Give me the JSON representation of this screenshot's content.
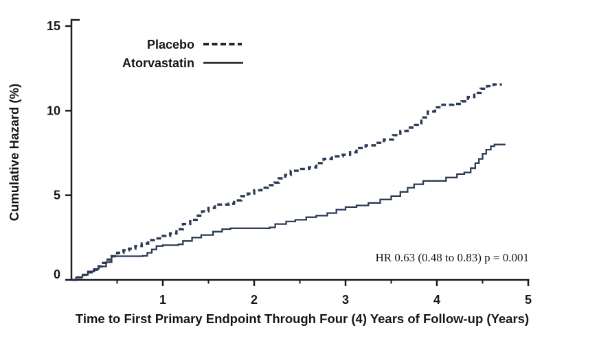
{
  "chart_data": {
    "type": "line",
    "title": "",
    "xlabel": "Time to First Primary Endpoint Through Four (4) Years of Follow-up (Years)",
    "ylabel": "Cumulative Hazard (%)",
    "xlim": [
      0,
      5
    ],
    "ylim": [
      0,
      15
    ],
    "x_major_ticks": [
      1,
      2,
      3,
      4,
      5
    ],
    "x_minor_ticks": [
      0.5,
      1.5,
      2.5,
      3.5,
      4.5
    ],
    "y_ticks": [
      0,
      5,
      10,
      15
    ],
    "grid": false,
    "legend_position": "inside-top-left",
    "annotation": {
      "text": "HR 0.63 (0.48 to 0.83) p = 0.001"
    },
    "colors": {
      "curve": "#2c3a55",
      "axis": "#1b1b1b",
      "text": "#161616",
      "legend_sample": "#1b1b1b",
      "background": "#ffffff"
    },
    "series": [
      {
        "name": "Placebo",
        "style": "dashed",
        "step": true,
        "points": [
          [
            0,
            0
          ],
          [
            0.05,
            0.15
          ],
          [
            0.1,
            0.3
          ],
          [
            0.16,
            0.45
          ],
          [
            0.22,
            0.6
          ],
          [
            0.28,
            0.8
          ],
          [
            0.33,
            1.0
          ],
          [
            0.38,
            1.2
          ],
          [
            0.44,
            1.4
          ],
          [
            0.5,
            1.6
          ],
          [
            0.57,
            1.75
          ],
          [
            0.63,
            1.85
          ],
          [
            0.7,
            2.0
          ],
          [
            0.77,
            2.15
          ],
          [
            0.84,
            2.35
          ],
          [
            0.92,
            2.45
          ],
          [
            1.0,
            2.6
          ],
          [
            1.08,
            2.75
          ],
          [
            1.15,
            3.0
          ],
          [
            1.22,
            3.3
          ],
          [
            1.3,
            3.55
          ],
          [
            1.37,
            3.8
          ],
          [
            1.43,
            4.05
          ],
          [
            1.5,
            4.25
          ],
          [
            1.57,
            4.45
          ],
          [
            1.72,
            4.5
          ],
          [
            1.78,
            4.7
          ],
          [
            1.86,
            4.95
          ],
          [
            1.93,
            5.1
          ],
          [
            2.0,
            5.3
          ],
          [
            2.08,
            5.45
          ],
          [
            2.15,
            5.6
          ],
          [
            2.22,
            5.75
          ],
          [
            2.27,
            6.0
          ],
          [
            2.34,
            6.2
          ],
          [
            2.4,
            6.45
          ],
          [
            2.5,
            6.55
          ],
          [
            2.6,
            6.65
          ],
          [
            2.68,
            6.9
          ],
          [
            2.76,
            7.15
          ],
          [
            2.85,
            7.3
          ],
          [
            2.97,
            7.4
          ],
          [
            3.05,
            7.55
          ],
          [
            3.12,
            7.8
          ],
          [
            3.22,
            7.95
          ],
          [
            3.32,
            8.1
          ],
          [
            3.42,
            8.3
          ],
          [
            3.52,
            8.55
          ],
          [
            3.6,
            8.8
          ],
          [
            3.68,
            9.0
          ],
          [
            3.76,
            9.15
          ],
          [
            3.83,
            9.6
          ],
          [
            3.9,
            9.95
          ],
          [
            3.98,
            10.2
          ],
          [
            4.06,
            10.35
          ],
          [
            4.18,
            10.4
          ],
          [
            4.27,
            10.55
          ],
          [
            4.34,
            10.8
          ],
          [
            4.41,
            11.05
          ],
          [
            4.48,
            11.3
          ],
          [
            4.55,
            11.45
          ],
          [
            4.62,
            11.55
          ],
          [
            4.7,
            11.6
          ]
        ]
      },
      {
        "name": "Atorvastatin",
        "style": "solid",
        "step": true,
        "points": [
          [
            0,
            0
          ],
          [
            0.05,
            0.15
          ],
          [
            0.12,
            0.3
          ],
          [
            0.18,
            0.5
          ],
          [
            0.25,
            0.65
          ],
          [
            0.3,
            0.8
          ],
          [
            0.38,
            1.05
          ],
          [
            0.44,
            1.4
          ],
          [
            0.78,
            1.42
          ],
          [
            0.83,
            1.6
          ],
          [
            0.88,
            1.8
          ],
          [
            0.93,
            2.0
          ],
          [
            1.0,
            2.05
          ],
          [
            1.17,
            2.1
          ],
          [
            1.22,
            2.3
          ],
          [
            1.32,
            2.5
          ],
          [
            1.42,
            2.65
          ],
          [
            1.55,
            2.85
          ],
          [
            1.65,
            3.0
          ],
          [
            1.74,
            3.05
          ],
          [
            2.17,
            3.1
          ],
          [
            2.23,
            3.3
          ],
          [
            2.35,
            3.45
          ],
          [
            2.45,
            3.55
          ],
          [
            2.57,
            3.7
          ],
          [
            2.68,
            3.8
          ],
          [
            2.8,
            3.95
          ],
          [
            2.9,
            4.15
          ],
          [
            3.0,
            4.3
          ],
          [
            3.12,
            4.4
          ],
          [
            3.25,
            4.55
          ],
          [
            3.38,
            4.75
          ],
          [
            3.5,
            4.95
          ],
          [
            3.6,
            5.2
          ],
          [
            3.68,
            5.45
          ],
          [
            3.75,
            5.65
          ],
          [
            3.85,
            5.85
          ],
          [
            4.1,
            6.05
          ],
          [
            4.22,
            6.25
          ],
          [
            4.3,
            6.35
          ],
          [
            4.37,
            6.6
          ],
          [
            4.42,
            6.9
          ],
          [
            4.46,
            7.15
          ],
          [
            4.5,
            7.45
          ],
          [
            4.54,
            7.7
          ],
          [
            4.59,
            7.9
          ],
          [
            4.63,
            8.0
          ],
          [
            4.75,
            8.0
          ]
        ]
      }
    ]
  }
}
